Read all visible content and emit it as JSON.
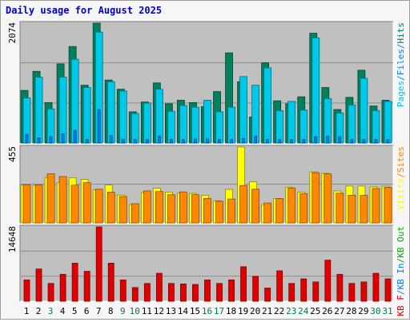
{
  "title": "Daily usage for August 2025",
  "colors": {
    "title": "#0000cc",
    "pages": "#00c8e8",
    "files": "#0080ff",
    "hits": "#00805c",
    "visits": "#ffff00",
    "sites": "#ff8800",
    "kb_in": "#0080ff",
    "kb_out": "#00b000",
    "kb_f": "#e00000",
    "weekend": "#008040",
    "weekday": "#000000",
    "plot_bg": "#c0c0c0"
  },
  "chart_data": [
    {
      "type": "bar",
      "title": "Daily usage for August 2025",
      "categories": [
        "1",
        "2",
        "3",
        "4",
        "5",
        "6",
        "7",
        "8",
        "9",
        "10",
        "11",
        "12",
        "13",
        "14",
        "15",
        "16",
        "17",
        "18",
        "19",
        "20",
        "21",
        "22",
        "23",
        "24",
        "25",
        "26",
        "27",
        "28",
        "29",
        "30",
        "31"
      ],
      "ymax_label": "2074",
      "ylim": [
        0,
        2074
      ],
      "legend": [
        "Pages",
        "/",
        "Files",
        "/",
        "Hits"
      ],
      "series": [
        {
          "name": "Hits",
          "values": [
            910,
            1240,
            700,
            1370,
            1670,
            1000,
            2074,
            1090,
            930,
            540,
            710,
            1040,
            680,
            740,
            700,
            630,
            890,
            1560,
            1060,
            450,
            1390,
            730,
            680,
            800,
            1900,
            960,
            580,
            790,
            1260,
            640,
            740
          ]
        },
        {
          "name": "Pages",
          "values": [
            780,
            1140,
            590,
            1140,
            1450,
            960,
            1920,
            1060,
            900,
            510,
            690,
            930,
            550,
            650,
            620,
            740,
            540,
            620,
            1150,
            1000,
            1300,
            560,
            720,
            570,
            1820,
            770,
            520,
            660,
            1120,
            560,
            720
          ]
        },
        {
          "name": "Files",
          "values": [
            150,
            90,
            110,
            160,
            220,
            60,
            580,
            130,
            60,
            60,
            60,
            120,
            60,
            60,
            70,
            70,
            60,
            60,
            80,
            120,
            60,
            60,
            60,
            60,
            110,
            120,
            110,
            60,
            60,
            60,
            60
          ]
        }
      ]
    },
    {
      "type": "bar",
      "categories": [
        "1",
        "2",
        "3",
        "4",
        "5",
        "6",
        "7",
        "8",
        "9",
        "10",
        "11",
        "12",
        "13",
        "14",
        "15",
        "16",
        "17",
        "18",
        "19",
        "20",
        "21",
        "22",
        "23",
        "24",
        "25",
        "26",
        "27",
        "28",
        "29",
        "30",
        "31"
      ],
      "ymax_label": "455",
      "ylim": [
        0,
        455
      ],
      "legend": [
        "Visits",
        "/",
        "Sites"
      ],
      "series": [
        {
          "name": "Visits",
          "values": [
            228,
            226,
            272,
            242,
            270,
            261,
            198,
            227,
            167,
            110,
            181,
            208,
            185,
            178,
            177,
            165,
            133,
            201,
            455,
            246,
            110,
            146,
            214,
            185,
            306,
            297,
            192,
            221,
            221,
            216,
            221
          ]
        },
        {
          "name": "Sites",
          "values": [
            229,
            228,
            295,
            278,
            226,
            241,
            202,
            184,
            158,
            115,
            192,
            188,
            169,
            186,
            169,
            147,
            130,
            143,
            224,
            202,
            119,
            146,
            208,
            175,
            301,
            294,
            178,
            166,
            165,
            206,
            214
          ]
        }
      ]
    },
    {
      "type": "bar",
      "categories": [
        "1",
        "2",
        "3",
        "4",
        "5",
        "6",
        "7",
        "8",
        "9",
        "10",
        "11",
        "12",
        "13",
        "14",
        "15",
        "16",
        "17",
        "18",
        "19",
        "20",
        "21",
        "22",
        "23",
        "24",
        "25",
        "26",
        "27",
        "28",
        "29",
        "30",
        "31"
      ],
      "ymax_label": "14648",
      "ylim": [
        0,
        14648
      ],
      "legend": [
        "KB F",
        "/",
        "KB In",
        "/",
        "KB Out"
      ],
      "series": [
        {
          "name": "KB F",
          "values": [
            4200,
            6350,
            3500,
            5300,
            7500,
            5900,
            14648,
            7500,
            4200,
            2700,
            3500,
            5500,
            3500,
            3400,
            3300,
            4200,
            3500,
            4200,
            6800,
            4900,
            2600,
            6000,
            3500,
            4400,
            3800,
            8100,
            5300,
            3500,
            3800,
            5500,
            4400
          ]
        },
        {
          "name": "KB In",
          "values": [
            0,
            0,
            0,
            0,
            0,
            0,
            0,
            0,
            0,
            0,
            0,
            0,
            0,
            0,
            0,
            0,
            0,
            0,
            0,
            0,
            0,
            0,
            0,
            0,
            0,
            0,
            0,
            0,
            0,
            0,
            0
          ]
        },
        {
          "name": "KB Out",
          "values": [
            0,
            0,
            0,
            0,
            0,
            0,
            0,
            0,
            0,
            0,
            0,
            0,
            0,
            0,
            0,
            0,
            0,
            0,
            0,
            0,
            0,
            0,
            0,
            0,
            0,
            0,
            0,
            0,
            0,
            0,
            0
          ]
        }
      ]
    }
  ],
  "weekend_days": [
    3,
    9,
    10,
    16,
    17,
    23,
    24,
    30,
    31
  ]
}
